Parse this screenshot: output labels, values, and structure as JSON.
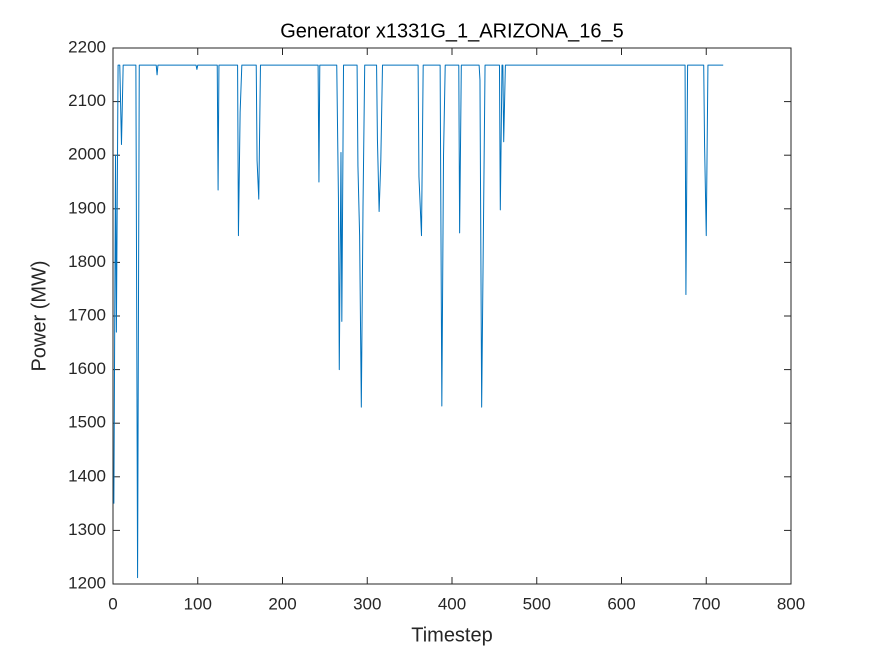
{
  "chart_data": {
    "type": "line",
    "title": "Generator x1331G_1_ARIZONA_16_5",
    "xlabel": "Timestep",
    "ylabel": "Power (MW)",
    "color": "#0072bd",
    "x": [
      1,
      3,
      4,
      6,
      8,
      10,
      12,
      27,
      29,
      31,
      51,
      52,
      53,
      98,
      99,
      100,
      123,
      124,
      125,
      147,
      148,
      150,
      152,
      169,
      170,
      172,
      174,
      242,
      243,
      244,
      264,
      266,
      267,
      269,
      270,
      272,
      288,
      289,
      291,
      293,
      295,
      297,
      311,
      312,
      314,
      316,
      318,
      360,
      361,
      364,
      366,
      386,
      387,
      388,
      390,
      392,
      408,
      409,
      411,
      432,
      433,
      435,
      437,
      439,
      456,
      457,
      459,
      460,
      461,
      463,
      675,
      676,
      678,
      697,
      698,
      700,
      702,
      720
    ],
    "values": [
      1350,
      2000,
      1670,
      2168,
      2168,
      2020,
      2168,
      2168,
      1212,
      2168,
      2168,
      2150,
      2168,
      2168,
      2160,
      2168,
      2168,
      1935,
      2168,
      2168,
      1850,
      2080,
      2168,
      2168,
      1990,
      1918,
      2168,
      2168,
      1950,
      2168,
      2168,
      1920,
      1600,
      2005,
      1690,
      2168,
      2168,
      1980,
      1850,
      1530,
      1905,
      2168,
      2168,
      2030,
      1895,
      1990,
      2168,
      2168,
      1960,
      1850,
      2168,
      2168,
      1850,
      1532,
      2000,
      2168,
      2168,
      1855,
      2168,
      2168,
      2140,
      1530,
      1850,
      2168,
      2168,
      1898,
      2168,
      2168,
      2025,
      2168,
      2168,
      1740,
      2168,
      2168,
      2020,
      1850,
      2168,
      2168
    ],
    "xlim": [
      0,
      800
    ],
    "xticks": [
      0,
      100,
      200,
      300,
      400,
      500,
      600,
      700,
      800
    ],
    "ylim": [
      1200,
      2200
    ],
    "yticks": [
      1200,
      1300,
      1400,
      1500,
      1600,
      1700,
      1800,
      1900,
      2000,
      2100,
      2200
    ],
    "grid": false
  }
}
